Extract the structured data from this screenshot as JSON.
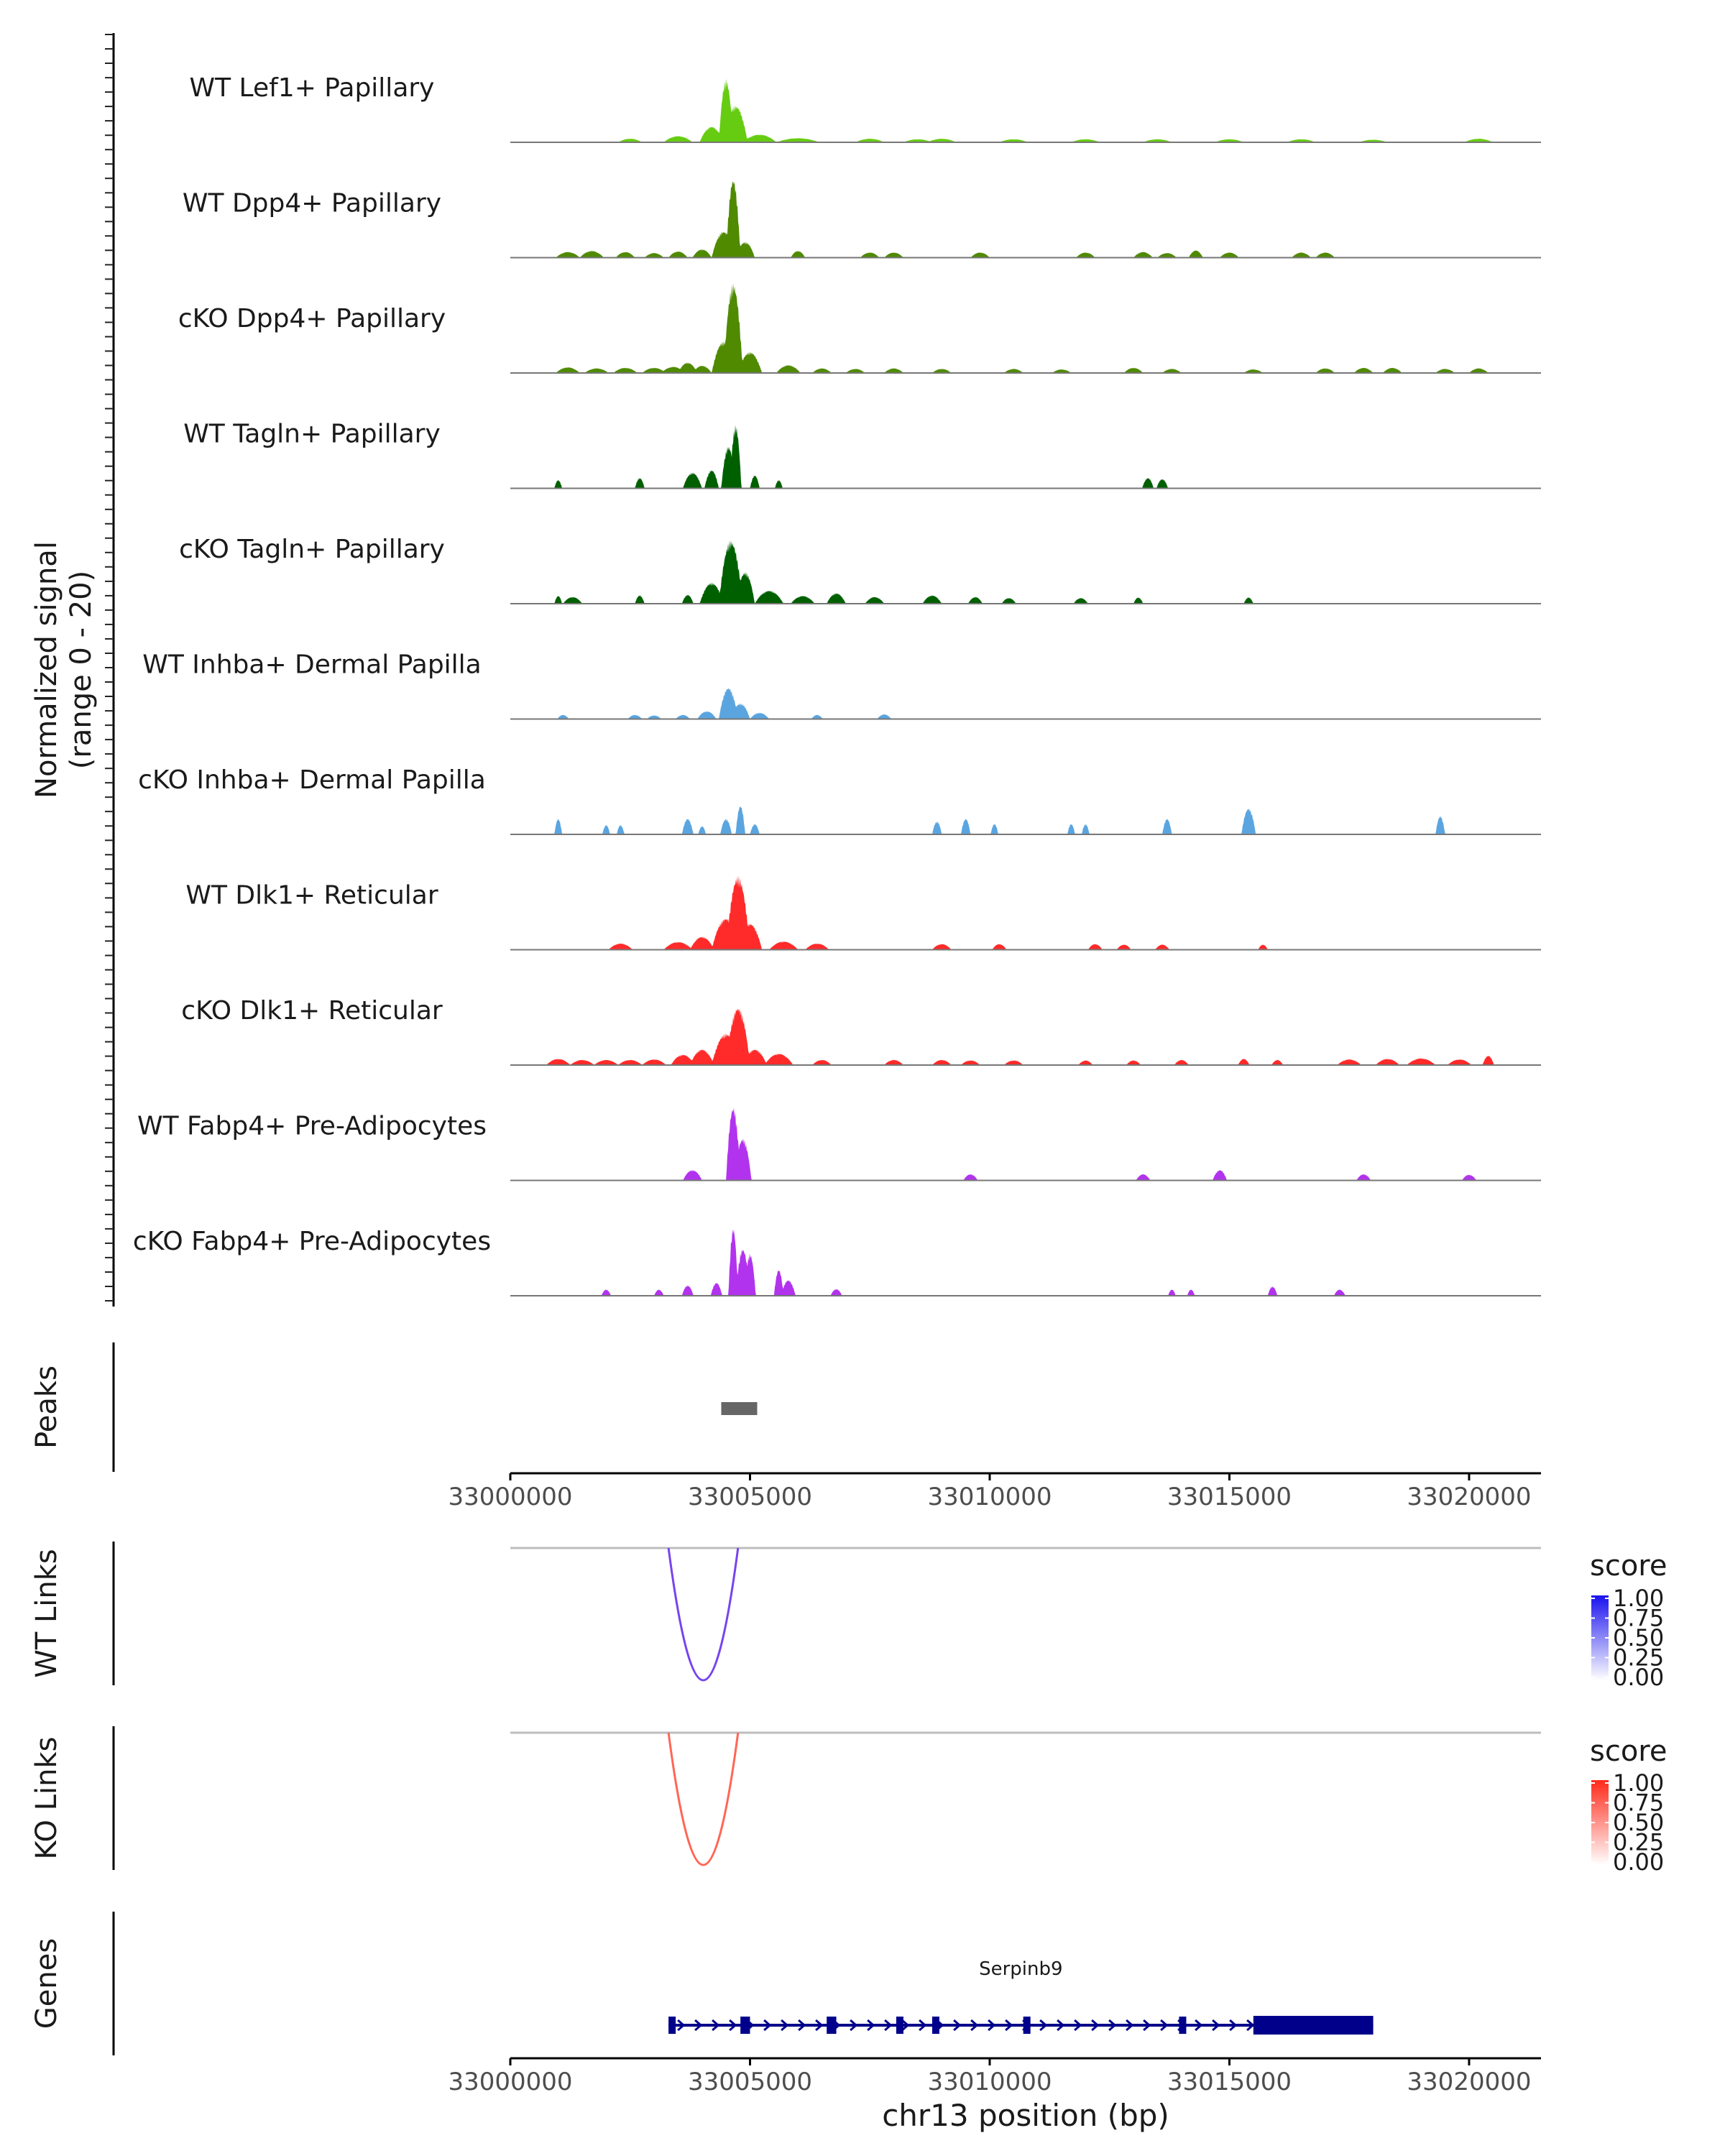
{
  "chart_data": {
    "type": "area",
    "title": "",
    "xlabel": "chr13 position (bp)",
    "xlim": [
      33000000,
      33021500
    ],
    "xticks": [
      {
        "value": 33000000,
        "label": "33000000"
      },
      {
        "value": 33005000,
        "label": "33005000"
      },
      {
        "value": 33010000,
        "label": "33010000"
      },
      {
        "value": 33015000,
        "label": "33015000"
      },
      {
        "value": 33020000,
        "label": "33020000"
      }
    ],
    "coverage": {
      "ylabel_line1": "Normalized signal",
      "ylabel_line2": "(range 0 - 20)",
      "ylim": [
        0,
        20
      ],
      "series": [
        {
          "name": "WT Lef1+ Papillary",
          "color": "#66cc11",
          "peaks": [
            [
              33002500,
              0.7,
              250
            ],
            [
              33003500,
              1.2,
              300
            ],
            [
              33004200,
              3,
              250
            ],
            [
              33004500,
              12,
              150
            ],
            [
              33004700,
              7,
              250
            ],
            [
              33005200,
              1.5,
              350
            ],
            [
              33006000,
              0.8,
              450
            ],
            [
              33007500,
              0.7,
              300
            ],
            [
              33008500,
              0.6,
              300
            ],
            [
              33009000,
              0.7,
              300
            ],
            [
              33010500,
              0.6,
              300
            ],
            [
              33012000,
              0.6,
              300
            ],
            [
              33013500,
              0.6,
              300
            ],
            [
              33015000,
              0.6,
              300
            ],
            [
              33016500,
              0.6,
              300
            ],
            [
              33018000,
              0.5,
              300
            ],
            [
              33020200,
              0.7,
              300
            ]
          ]
        },
        {
          "name": "WT Dpp4+ Papillary",
          "color": "#4f8a00",
          "peaks": [
            [
              33001200,
              1.1,
              250
            ],
            [
              33001700,
              1.3,
              250
            ],
            [
              33002400,
              1.1,
              200
            ],
            [
              33003000,
              0.9,
              200
            ],
            [
              33003500,
              1.2,
              200
            ],
            [
              33004000,
              1.6,
              200
            ],
            [
              33004450,
              5,
              250
            ],
            [
              33004650,
              15,
              150
            ],
            [
              33004900,
              3,
              200
            ],
            [
              33006000,
              1.3,
              150
            ],
            [
              33007500,
              1.0,
              200
            ],
            [
              33008000,
              1.0,
              200
            ],
            [
              33009800,
              1.0,
              200
            ],
            [
              33012000,
              1.0,
              200
            ],
            [
              33013200,
              1.1,
              200
            ],
            [
              33013700,
              0.9,
              200
            ],
            [
              33014300,
              1.4,
              150
            ],
            [
              33015000,
              1.0,
              200
            ],
            [
              33016500,
              1.0,
              200
            ],
            [
              33017000,
              1.0,
              200
            ]
          ]
        },
        {
          "name": "cKO Dpp4+ Papillary",
          "color": "#4f8a00",
          "peaks": [
            [
              33001200,
              1.1,
              250
            ],
            [
              33001800,
              0.9,
              250
            ],
            [
              33002400,
              1.0,
              250
            ],
            [
              33003000,
              1.0,
              250
            ],
            [
              33003400,
              1.2,
              250
            ],
            [
              33003700,
              2,
              200
            ],
            [
              33004000,
              1.4,
              200
            ],
            [
              33004450,
              6,
              250
            ],
            [
              33004650,
              17,
              200
            ],
            [
              33005000,
              4,
              250
            ],
            [
              33005800,
              1.5,
              250
            ],
            [
              33006500,
              0.9,
              200
            ],
            [
              33007200,
              0.8,
              200
            ],
            [
              33008000,
              0.9,
              200
            ],
            [
              33009000,
              0.8,
              200
            ],
            [
              33010500,
              0.8,
              200
            ],
            [
              33011500,
              0.7,
              200
            ],
            [
              33013000,
              1.0,
              200
            ],
            [
              33013800,
              0.8,
              200
            ],
            [
              33015500,
              0.7,
              200
            ],
            [
              33017000,
              0.9,
              200
            ],
            [
              33017800,
              1.0,
              200
            ],
            [
              33018400,
              1.0,
              200
            ],
            [
              33019500,
              0.8,
              200
            ],
            [
              33020200,
              0.9,
              200
            ]
          ]
        },
        {
          "name": "WT Tagln+ Papillary",
          "color": "#006000",
          "peaks": [
            [
              33001000,
              1.6,
              80
            ],
            [
              33002700,
              2,
              100
            ],
            [
              33003800,
              3,
              200
            ],
            [
              33004200,
              3.5,
              150
            ],
            [
              33004550,
              8,
              150
            ],
            [
              33004700,
              12,
              120
            ],
            [
              33005100,
              2.5,
              100
            ],
            [
              33005600,
              1.6,
              80
            ],
            [
              33013300,
              2,
              120
            ],
            [
              33013600,
              1.8,
              120
            ]
          ]
        },
        {
          "name": "cKO Tagln+ Papillary",
          "color": "#006000",
          "peaks": [
            [
              33001000,
              1.5,
              80
            ],
            [
              33001300,
              1.3,
              200
            ],
            [
              33002700,
              1.6,
              100
            ],
            [
              33003700,
              1.7,
              120
            ],
            [
              33004200,
              4,
              250
            ],
            [
              33004600,
              12,
              250
            ],
            [
              33004900,
              6,
              200
            ],
            [
              33005400,
              2.5,
              300
            ],
            [
              33006100,
              1.5,
              250
            ],
            [
              33006800,
              2,
              200
            ],
            [
              33007600,
              1.3,
              200
            ],
            [
              33008800,
              1.6,
              200
            ],
            [
              33009700,
              1.3,
              150
            ],
            [
              33010400,
              1.1,
              150
            ],
            [
              33011900,
              1.1,
              150
            ],
            [
              33013100,
              1.2,
              100
            ],
            [
              33015400,
              1.2,
              100
            ]
          ]
        },
        {
          "name": "WT Inhba+ Dermal Papilla",
          "color": "#5aa5e0",
          "peaks": [
            [
              33001100,
              0.8,
              120
            ],
            [
              33002600,
              0.8,
              150
            ],
            [
              33003000,
              0.7,
              150
            ],
            [
              33003600,
              0.8,
              150
            ],
            [
              33004100,
              1.5,
              200
            ],
            [
              33004550,
              6,
              200
            ],
            [
              33004800,
              3,
              200
            ],
            [
              33005200,
              1.2,
              200
            ],
            [
              33006400,
              0.8,
              120
            ],
            [
              33007800,
              0.9,
              150
            ]
          ]
        },
        {
          "name": "cKO Inhba+ Dermal Papilla",
          "color": "#5aa5e0",
          "peaks": [
            [
              33001000,
              3,
              80
            ],
            [
              33002000,
              1.8,
              80
            ],
            [
              33002300,
              1.8,
              80
            ],
            [
              33003700,
              3,
              120
            ],
            [
              33004000,
              1.6,
              80
            ],
            [
              33004500,
              3,
              120
            ],
            [
              33004800,
              5.5,
              100
            ],
            [
              33005100,
              2,
              100
            ],
            [
              33008900,
              2.5,
              100
            ],
            [
              33009500,
              3,
              100
            ],
            [
              33010100,
              2,
              80
            ],
            [
              33011700,
              2,
              80
            ],
            [
              33012000,
              2,
              80
            ],
            [
              33013700,
              3,
              100
            ],
            [
              33015400,
              5,
              150
            ],
            [
              33019400,
              3.5,
              100
            ]
          ]
        },
        {
          "name": "WT Dlk1+ Reticular",
          "color": "#ff2a2a",
          "peaks": [
            [
              33002300,
              1.2,
              250
            ],
            [
              33003500,
              1.5,
              300
            ],
            [
              33004000,
              2.5,
              250
            ],
            [
              33004500,
              6,
              300
            ],
            [
              33004750,
              14,
              250
            ],
            [
              33005000,
              5,
              250
            ],
            [
              33005700,
              1.6,
              300
            ],
            [
              33006400,
              1.2,
              250
            ],
            [
              33009000,
              1.1,
              200
            ],
            [
              33010200,
              1.1,
              150
            ],
            [
              33012200,
              1.1,
              150
            ],
            [
              33012800,
              1.0,
              150
            ],
            [
              33013600,
              1.0,
              150
            ],
            [
              33015700,
              1.0,
              100
            ]
          ]
        },
        {
          "name": "cKO Dlk1+ Reticular",
          "color": "#ff2a2a",
          "peaks": [
            [
              33001000,
              1.2,
              250
            ],
            [
              33001500,
              1.0,
              250
            ],
            [
              33002000,
              1.0,
              250
            ],
            [
              33002500,
              1.0,
              250
            ],
            [
              33003000,
              1.1,
              250
            ],
            [
              33003600,
              2,
              250
            ],
            [
              33004000,
              3,
              250
            ],
            [
              33004500,
              6,
              300
            ],
            [
              33004750,
              11,
              250
            ],
            [
              33005100,
              3,
              250
            ],
            [
              33005600,
              2.2,
              300
            ],
            [
              33006500,
              1.0,
              200
            ],
            [
              33008000,
              1.0,
              200
            ],
            [
              33009000,
              1.0,
              200
            ],
            [
              33009600,
              0.9,
              200
            ],
            [
              33010500,
              0.9,
              200
            ],
            [
              33012000,
              0.9,
              150
            ],
            [
              33013000,
              0.9,
              150
            ],
            [
              33014000,
              1.0,
              150
            ],
            [
              33015300,
              1.2,
              120
            ],
            [
              33016000,
              1.0,
              120
            ],
            [
              33017500,
              1.1,
              250
            ],
            [
              33018300,
              1.2,
              250
            ],
            [
              33019000,
              1.3,
              300
            ],
            [
              33019800,
              1.1,
              250
            ],
            [
              33020400,
              1.8,
              120
            ]
          ]
        },
        {
          "name": "WT Fabp4+ Pre-Adipocytes",
          "color": "#b233ee",
          "peaks": [
            [
              33003800,
              2,
              200
            ],
            [
              33004650,
              14,
              150
            ],
            [
              33004850,
              8,
              180
            ],
            [
              33009600,
              1.2,
              150
            ],
            [
              33013200,
              1.2,
              150
            ],
            [
              33014800,
              2,
              150
            ],
            [
              33017800,
              1.2,
              150
            ],
            [
              33020000,
              1.1,
              150
            ]
          ]
        },
        {
          "name": "cKO Fabp4+ Pre-Adipocytes",
          "color": "#b233ee",
          "peaks": [
            [
              33002000,
              1.2,
              100
            ],
            [
              33003100,
              1.2,
              100
            ],
            [
              33003700,
              2,
              120
            ],
            [
              33004300,
              2.5,
              120
            ],
            [
              33004650,
              13,
              100
            ],
            [
              33004850,
              9,
              150
            ],
            [
              33005000,
              8,
              120
            ],
            [
              33005600,
              5,
              100
            ],
            [
              33005800,
              3,
              150
            ],
            [
              33006800,
              1.3,
              120
            ],
            [
              33013800,
              1.2,
              80
            ],
            [
              33014200,
              1.2,
              80
            ],
            [
              33015900,
              1.8,
              100
            ],
            [
              33017300,
              1.2,
              120
            ]
          ]
        }
      ]
    },
    "peaks_track": {
      "label": "Peaks",
      "regions": [
        {
          "start": 33004400,
          "end": 33005150,
          "color": "#666666"
        }
      ]
    },
    "links_tracks": [
      {
        "label": "WT Links",
        "start": 33003300,
        "end": 33004750,
        "score": 0.75,
        "color": "#7744ee",
        "legend": {
          "title": "score",
          "ticks": [
            "1.00",
            "0.75",
            "0.50",
            "0.25",
            "0.00"
          ],
          "high": "#1a12ee",
          "low": "#ffffff"
        }
      },
      {
        "label": "KO Links",
        "start": 33003300,
        "end": 33004750,
        "score": 0.75,
        "color": "#ff6655",
        "legend": {
          "title": "score",
          "ticks": [
            "1.00",
            "0.75",
            "0.50",
            "0.25",
            "0.00"
          ],
          "high": "#ff2a1a",
          "low": "#ffffff"
        }
      }
    ],
    "genes_track": {
      "label": "Genes",
      "color": "#00008b",
      "genes": [
        {
          "name": "Serpinb9",
          "start": 33003300,
          "end": 33018000,
          "strand": "+",
          "exons": [
            [
              33003300,
              33003450
            ],
            [
              33004800,
              33005000
            ],
            [
              33006600,
              33006800
            ],
            [
              33008050,
              33008200
            ],
            [
              33008800,
              33008950
            ],
            [
              33010700,
              33010850
            ],
            [
              33013950,
              33014100
            ],
            [
              33015500,
              33018000
            ]
          ]
        }
      ]
    }
  }
}
